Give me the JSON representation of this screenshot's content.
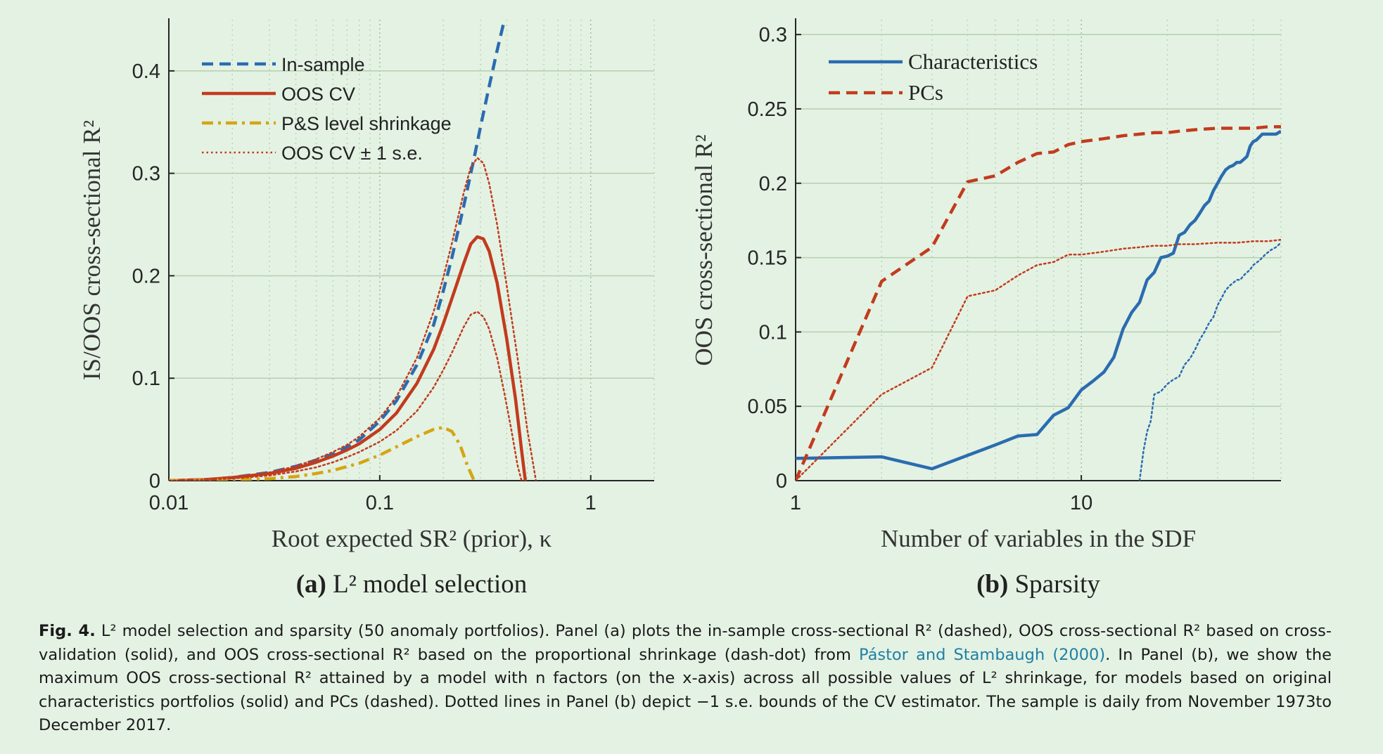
{
  "chart_data": [
    {
      "type": "line",
      "panel_label": "(a)",
      "panel_title": "L² model selection",
      "xlabel": "Root expected SR² (prior), κ",
      "ylabel": "IS/OOS cross-sectional R²",
      "xscale": "log",
      "xlim": [
        0.01,
        2
      ],
      "ylim": [
        0,
        0.45
      ],
      "xticks": [
        0.01,
        0.1,
        1
      ],
      "xtick_labels": [
        "0.01",
        "0.1",
        "1"
      ],
      "yticks": [
        0,
        0.1,
        0.2,
        0.3,
        0.4
      ],
      "ytick_labels": [
        "0",
        "0.1",
        "0.2",
        "0.3",
        "0.4"
      ],
      "grid": true,
      "legend_position": "top-left",
      "series": [
        {
          "name": "In-sample",
          "style": "dashed",
          "color": "#2b6cb0",
          "x": [
            0.01,
            0.015,
            0.02,
            0.03,
            0.04,
            0.05,
            0.06,
            0.07,
            0.08,
            0.1,
            0.12,
            0.15,
            0.18,
            0.2,
            0.22,
            0.25,
            0.28,
            0.3,
            0.33,
            0.36,
            0.39,
            0.41
          ],
          "y": [
            0,
            0.001,
            0.003,
            0.008,
            0.014,
            0.02,
            0.026,
            0.033,
            0.04,
            0.058,
            0.078,
            0.113,
            0.152,
            0.185,
            0.218,
            0.268,
            0.315,
            0.345,
            0.385,
            0.42,
            0.45,
            0.48
          ]
        },
        {
          "name": "OOS CV",
          "style": "solid",
          "color": "#c23b1e",
          "x": [
            0.01,
            0.015,
            0.02,
            0.03,
            0.04,
            0.05,
            0.06,
            0.07,
            0.08,
            0.1,
            0.12,
            0.15,
            0.18,
            0.2,
            0.22,
            0.25,
            0.27,
            0.29,
            0.31,
            0.33,
            0.36,
            0.4,
            0.44,
            0.47,
            0.49
          ],
          "y": [
            0,
            0.001,
            0.003,
            0.007,
            0.012,
            0.018,
            0.024,
            0.03,
            0.036,
            0.05,
            0.066,
            0.095,
            0.128,
            0.153,
            0.178,
            0.212,
            0.231,
            0.238,
            0.236,
            0.224,
            0.193,
            0.138,
            0.08,
            0.03,
            0
          ]
        },
        {
          "name": "P&S level shrinkage",
          "style": "dashdot",
          "color": "#d4a514",
          "x": [
            0.01,
            0.02,
            0.03,
            0.04,
            0.05,
            0.06,
            0.08,
            0.1,
            0.12,
            0.15,
            0.18,
            0.2,
            0.22,
            0.24,
            0.26,
            0.28
          ],
          "y": [
            0,
            0.001,
            0.002,
            0.004,
            0.007,
            0.01,
            0.017,
            0.025,
            0.033,
            0.043,
            0.05,
            0.052,
            0.048,
            0.035,
            0.015,
            0
          ]
        },
        {
          "name": "OOS CV ± 1 s.e.",
          "style": "dotted",
          "color": "#c23b1e",
          "x": [
            0.01,
            0.015,
            0.02,
            0.03,
            0.04,
            0.05,
            0.06,
            0.07,
            0.08,
            0.1,
            0.12,
            0.15,
            0.18,
            0.2,
            0.22,
            0.25,
            0.27,
            0.29,
            0.31,
            0.33,
            0.36,
            0.4,
            0.45,
            0.5,
            0.55
          ],
          "y": [
            0,
            0.001,
            0.003,
            0.008,
            0.014,
            0.021,
            0.028,
            0.035,
            0.043,
            0.061,
            0.082,
            0.12,
            0.165,
            0.198,
            0.232,
            0.281,
            0.306,
            0.315,
            0.31,
            0.29,
            0.25,
            0.19,
            0.12,
            0.05,
            0
          ]
        },
        {
          "style": "dotted",
          "color": "#c23b1e",
          "x": [
            0.01,
            0.015,
            0.02,
            0.03,
            0.04,
            0.05,
            0.06,
            0.07,
            0.08,
            0.1,
            0.12,
            0.15,
            0.18,
            0.2,
            0.22,
            0.25,
            0.27,
            0.29,
            0.31,
            0.33,
            0.36,
            0.39,
            0.42,
            0.45,
            0.47
          ],
          "y": [
            0,
            0.001,
            0.002,
            0.005,
            0.009,
            0.013,
            0.018,
            0.023,
            0.028,
            0.038,
            0.049,
            0.068,
            0.091,
            0.108,
            0.125,
            0.15,
            0.162,
            0.165,
            0.16,
            0.148,
            0.12,
            0.085,
            0.05,
            0.015,
            0
          ]
        }
      ]
    },
    {
      "type": "line",
      "panel_label": "(b)",
      "panel_title": "Sparsity",
      "xlabel": "Number of variables in the SDF",
      "ylabel": "OOS cross-sectional R²",
      "xscale": "log",
      "xlim": [
        1,
        50
      ],
      "ylim": [
        0,
        0.31
      ],
      "xticks": [
        1,
        10
      ],
      "xtick_labels": [
        "1",
        "10"
      ],
      "yticks": [
        0,
        0.05,
        0.1,
        0.15,
        0.2,
        0.25,
        0.3
      ],
      "ytick_labels": [
        "0",
        "0.05",
        "0.1",
        "0.15",
        "0.2",
        "0.25",
        "0.3"
      ],
      "grid": true,
      "legend_position": "top-left",
      "series": [
        {
          "name": "Characteristics",
          "style": "solid",
          "color": "#2b6cb0",
          "x": [
            1,
            2,
            3,
            4,
            5,
            6,
            7,
            8,
            9,
            10,
            11,
            12,
            13,
            14,
            15,
            16,
            17,
            18,
            19,
            20,
            21,
            22,
            23,
            24,
            25,
            26,
            27,
            28,
            29,
            30,
            31,
            32,
            33,
            34,
            35,
            36,
            37,
            38,
            39,
            40,
            41,
            42,
            43,
            44,
            45,
            46,
            47,
            48,
            49,
            50
          ],
          "y": [
            0.015,
            0.016,
            0.008,
            0.017,
            0.024,
            0.03,
            0.031,
            0.044,
            0.049,
            0.061,
            0.067,
            0.073,
            0.083,
            0.102,
            0.113,
            0.12,
            0.135,
            0.14,
            0.15,
            0.151,
            0.153,
            0.165,
            0.167,
            0.172,
            0.175,
            0.18,
            0.185,
            0.188,
            0.195,
            0.2,
            0.205,
            0.209,
            0.211,
            0.212,
            0.214,
            0.214,
            0.216,
            0.218,
            0.225,
            0.228,
            0.229,
            0.231,
            0.233,
            0.233,
            0.233,
            0.233,
            0.233,
            0.233,
            0.234,
            0.235
          ]
        },
        {
          "name": "PCs",
          "style": "dashed",
          "color": "#c23b1e",
          "x": [
            1,
            2,
            3,
            4,
            5,
            6,
            7,
            8,
            9,
            10,
            12,
            14,
            16,
            18,
            20,
            22,
            25,
            30,
            35,
            40,
            45,
            50
          ],
          "y": [
            0,
            0.134,
            0.157,
            0.201,
            0.205,
            0.214,
            0.22,
            0.221,
            0.226,
            0.228,
            0.23,
            0.232,
            0.233,
            0.234,
            0.234,
            0.235,
            0.236,
            0.237,
            0.237,
            0.237,
            0.238,
            0.238
          ]
        },
        {
          "style": "dotted",
          "color": "#c23b1e",
          "x": [
            1,
            2,
            3,
            4,
            5,
            6,
            7,
            8,
            9,
            10,
            12,
            14,
            16,
            18,
            20,
            22,
            25,
            30,
            35,
            40,
            45,
            50
          ],
          "y": [
            0,
            0.058,
            0.076,
            0.124,
            0.128,
            0.138,
            0.145,
            0.147,
            0.152,
            0.152,
            0.154,
            0.156,
            0.157,
            0.158,
            0.158,
            0.159,
            0.159,
            0.16,
            0.16,
            0.161,
            0.161,
            0.162
          ]
        },
        {
          "style": "dotted",
          "color": "#2b6cb0",
          "x": [
            16,
            16.5,
            17,
            17.5,
            18,
            19,
            20,
            21,
            22,
            23,
            24,
            25,
            26,
            27,
            28,
            29,
            30,
            31,
            32,
            33,
            34,
            35,
            36,
            37,
            38,
            39,
            40,
            42,
            44,
            46,
            48,
            50
          ],
          "y": [
            0,
            0.02,
            0.033,
            0.04,
            0.058,
            0.06,
            0.065,
            0.068,
            0.07,
            0.078,
            0.082,
            0.088,
            0.095,
            0.1,
            0.106,
            0.11,
            0.118,
            0.123,
            0.128,
            0.131,
            0.133,
            0.135,
            0.135,
            0.138,
            0.14,
            0.142,
            0.145,
            0.148,
            0.152,
            0.155,
            0.157,
            0.16
          ]
        }
      ]
    }
  ],
  "caption": {
    "label": "Fig. 4.",
    "text_a": "L² model selection and sparsity (50 anomaly portfolios). Panel (a) plots the in-sample cross-sectional R² (dashed), OOS cross-sectional R² based on cross-validation (solid), and OOS cross-sectional R² based on the proportional shrinkage (dash-dot) from",
    "citation": "Pástor and Stambaugh (2000)",
    "text_b": ". In Panel (b), we show the maximum OOS cross-sectional R² attained by a model with n factors (on the x-axis) across all possible values of L² shrinkage, for models based on original characteristics portfolios (solid) and PCs (dashed). Dotted lines in Panel (b) depict −1 s.e. bounds of the CV estimator. The sample is daily from November 1973to December 2017."
  }
}
